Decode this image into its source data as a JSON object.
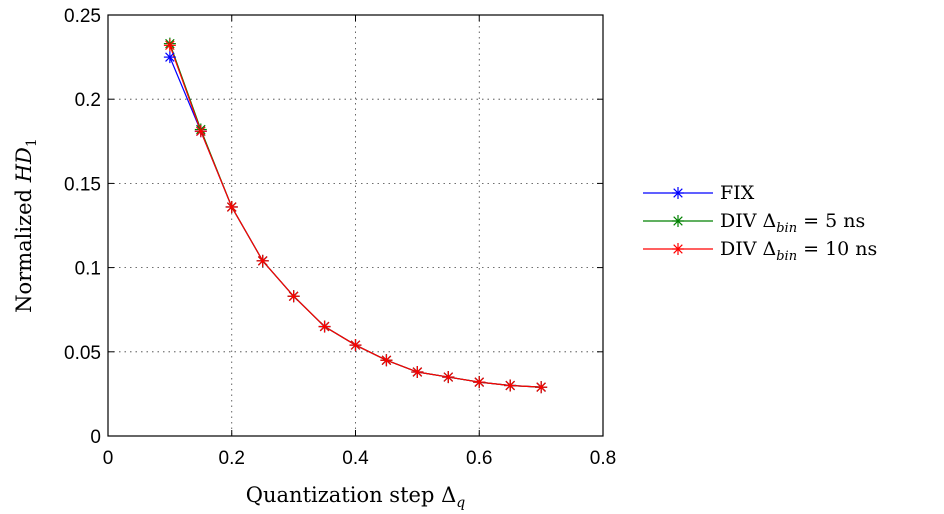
{
  "chart_data": {
    "type": "line",
    "xlabel": "Quantization step Δ_q",
    "ylabel": "Normalized HD_1",
    "xlim": [
      0,
      0.8
    ],
    "ylim": [
      0,
      0.25
    ],
    "xticks": [
      0,
      0.2,
      0.4,
      0.6,
      0.8
    ],
    "xtick_labels": [
      "0",
      "0.2",
      "0.4",
      "0.6",
      "0.8"
    ],
    "yticks": [
      0,
      0.05,
      0.1,
      0.15,
      0.2,
      0.25
    ],
    "ytick_labels": [
      "0",
      "0.05",
      "0.1",
      "0.15",
      "0.2",
      "0.25"
    ],
    "grid": true,
    "legend_position": "outside-right",
    "series": [
      {
        "name": "FIX",
        "name_main": "FIX",
        "name_sub": "",
        "name_tail": "",
        "color": "#0000ff",
        "marker": "asterisk",
        "x": [
          0.1,
          0.15,
          0.2,
          0.25,
          0.3,
          0.35,
          0.4,
          0.45,
          0.5,
          0.55,
          0.6,
          0.65,
          0.7
        ],
        "y": [
          0.225,
          0.181,
          0.136,
          0.104,
          0.083,
          0.065,
          0.054,
          0.045,
          0.038,
          0.035,
          0.032,
          0.03,
          0.029
        ]
      },
      {
        "name": "DIV Δ_bin = 5 ns",
        "name_main": "DIV Δ",
        "name_sub": "bin",
        "name_tail": " = 5 ns",
        "color": "#008000",
        "marker": "asterisk",
        "x": [
          0.1,
          0.15,
          0.2,
          0.25,
          0.3,
          0.35,
          0.4,
          0.45,
          0.5,
          0.55,
          0.6,
          0.65,
          0.7
        ],
        "y": [
          0.233,
          0.182,
          0.136,
          0.104,
          0.083,
          0.065,
          0.054,
          0.045,
          0.038,
          0.035,
          0.032,
          0.03,
          0.029
        ]
      },
      {
        "name": "DIV Δ_bin = 10 ns",
        "name_main": "DIV Δ",
        "name_sub": "bin",
        "name_tail": " = 10 ns",
        "color": "#ff0000",
        "marker": "asterisk",
        "x": [
          0.1,
          0.15,
          0.2,
          0.25,
          0.3,
          0.35,
          0.4,
          0.45,
          0.5,
          0.55,
          0.6,
          0.65,
          0.7
        ],
        "y": [
          0.232,
          0.181,
          0.136,
          0.104,
          0.083,
          0.065,
          0.054,
          0.045,
          0.038,
          0.035,
          0.032,
          0.03,
          0.029
        ]
      }
    ]
  }
}
